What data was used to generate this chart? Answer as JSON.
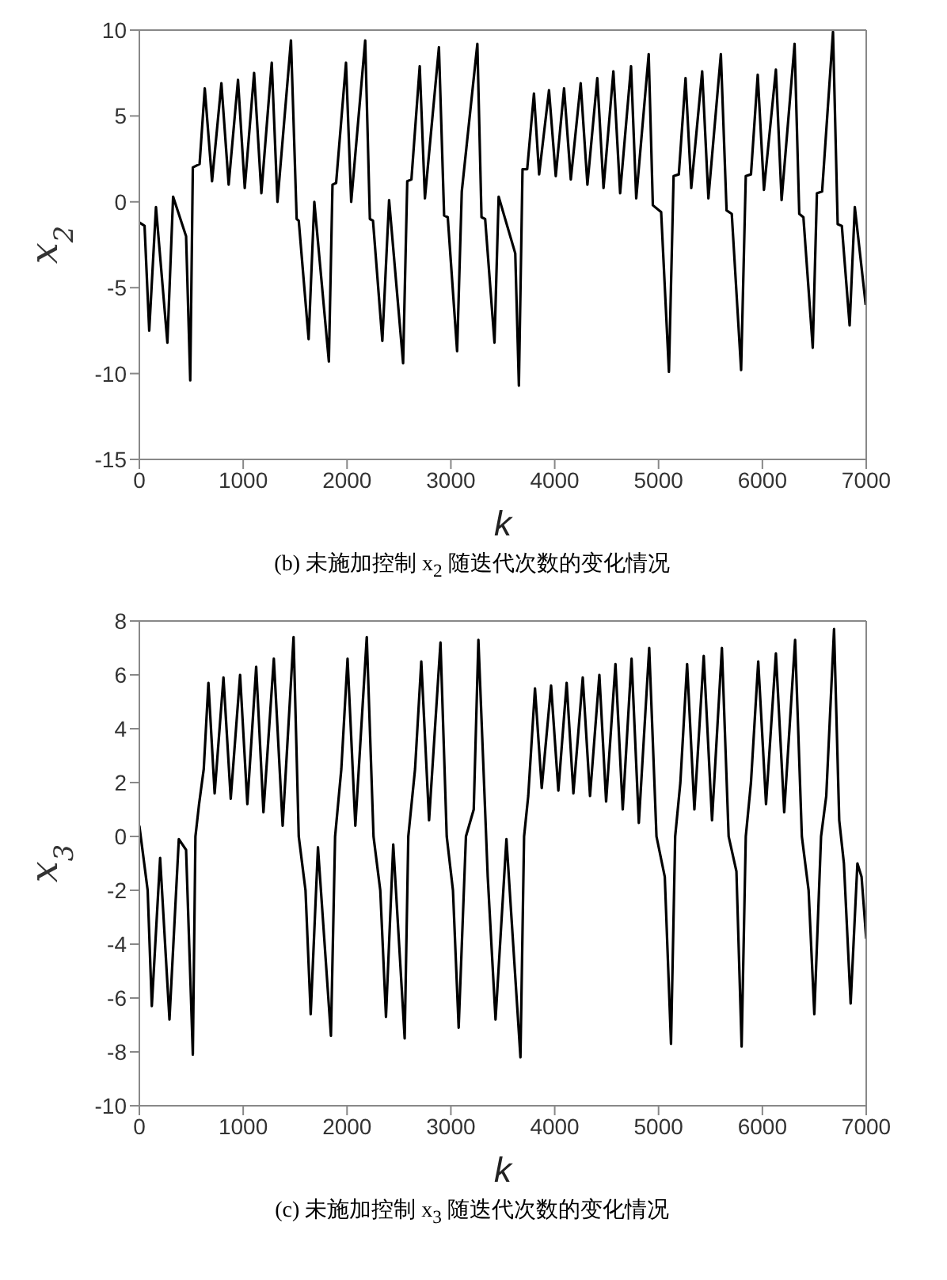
{
  "chart_data": [
    {
      "type": "line",
      "title": "(b)  未施加控制 x$_{2}$ 随迭代次数的变化情况",
      "xlabel": "k",
      "ylabel": "x$_{2}$",
      "xlim": [
        0,
        7000
      ],
      "xticks": [
        0,
        1000,
        2000,
        3000,
        4000,
        5000,
        6000,
        7000
      ],
      "ylim": [
        -15,
        10
      ],
      "yticks": [
        -15,
        -10,
        -5,
        0,
        5,
        10
      ],
      "marker": "none",
      "line_style": "solid",
      "series": [
        {
          "color": "#000000",
          "x": [
            0,
            50,
            95,
            160,
            270,
            325,
            450,
            490,
            515,
            580,
            630,
            700,
            790,
            860,
            950,
            1015,
            1105,
            1175,
            1275,
            1330,
            1460,
            1515,
            1535,
            1630,
            1685,
            1825,
            1860,
            1895,
            1990,
            2040,
            2175,
            2220,
            2250,
            2340,
            2405,
            2540,
            2580,
            2620,
            2700,
            2750,
            2885,
            2935,
            2970,
            3060,
            3105,
            3255,
            3295,
            3330,
            3420,
            3460,
            3620,
            3655,
            3690,
            3735,
            3800,
            3850,
            3945,
            4010,
            4090,
            4155,
            4250,
            4315,
            4410,
            4470,
            4565,
            4630,
            4735,
            4785,
            4905,
            4945,
            5025,
            5100,
            5145,
            5195,
            5260,
            5315,
            5420,
            5480,
            5600,
            5655,
            5705,
            5795,
            5840,
            5890,
            5955,
            6015,
            6130,
            6185,
            6310,
            6355,
            6395,
            6485,
            6525,
            6575,
            6680,
            6725,
            6765,
            6840,
            6890,
            6995
          ],
          "values": [
            -1.2,
            -1.4,
            -7.5,
            -0.3,
            -8.2,
            0.3,
            -2,
            -10.4,
            2,
            2.2,
            6.6,
            1.2,
            6.9,
            1,
            7.1,
            0.8,
            7.5,
            0.5,
            8.1,
            0,
            9.4,
            -1,
            -1.1,
            -8,
            0,
            -9.3,
            1,
            1.1,
            8.1,
            0,
            9.4,
            -1,
            -1.1,
            -8.1,
            0.1,
            -9.4,
            1.2,
            1.3,
            7.9,
            0.2,
            9,
            -0.8,
            -0.9,
            -8.7,
            0.6,
            9.2,
            -0.9,
            -1,
            -8.2,
            0.3,
            -3,
            -10.7,
            1.9,
            1.9,
            6.3,
            1.6,
            6.5,
            1.5,
            6.6,
            1.3,
            6.9,
            1,
            7.2,
            0.8,
            7.6,
            0.5,
            7.9,
            0.2,
            8.6,
            -0.2,
            -0.6,
            -9.9,
            1.5,
            1.6,
            7.2,
            0.8,
            7.6,
            0.2,
            8.6,
            -0.5,
            -0.7,
            -9.8,
            1.5,
            1.6,
            7.4,
            0.7,
            7.7,
            0.1,
            9.2,
            -0.7,
            -0.9,
            -8.5,
            0.5,
            0.6,
            9.9,
            -1.3,
            -1.4,
            -7.2,
            -0.3,
            -6
          ]
        }
      ]
    },
    {
      "type": "line",
      "title": "(c)  未施加控制 x$_{3}$ 随迭代次数的变化情况",
      "xlabel": "k",
      "ylabel": "x$_{3}$",
      "xlim": [
        0,
        7000
      ],
      "xticks": [
        0,
        1000,
        2000,
        3000,
        4000,
        5000,
        6000,
        7000
      ],
      "ylim": [
        -10,
        8
      ],
      "yticks": [
        -10,
        -8,
        -6,
        -4,
        -2,
        0,
        2,
        4,
        6,
        8
      ],
      "marker": "none",
      "line_style": "solid",
      "series": [
        {
          "color": "#000000",
          "x": [
            0,
            80,
            120,
            200,
            290,
            380,
            450,
            515,
            540,
            575,
            620,
            665,
            725,
            810,
            880,
            970,
            1040,
            1125,
            1195,
            1295,
            1380,
            1485,
            1535,
            1600,
            1650,
            1720,
            1845,
            1885,
            1945,
            2005,
            2080,
            2190,
            2255,
            2320,
            2375,
            2445,
            2555,
            2590,
            2655,
            2715,
            2790,
            2900,
            2960,
            3020,
            3075,
            3145,
            3220,
            3265,
            3355,
            3430,
            3535,
            3670,
            3705,
            3745,
            3810,
            3875,
            3965,
            4035,
            4115,
            4180,
            4270,
            4340,
            4430,
            4495,
            4585,
            4655,
            4740,
            4810,
            4910,
            4980,
            5060,
            5120,
            5160,
            5210,
            5275,
            5345,
            5435,
            5515,
            5610,
            5675,
            5750,
            5800,
            5840,
            5890,
            5960,
            6035,
            6130,
            6210,
            6315,
            6380,
            6445,
            6500,
            6565,
            6615,
            6690,
            6740,
            6785,
            6850,
            6915,
            6955,
            7000
          ],
          "values": [
            0.4,
            -2,
            -6.3,
            -0.8,
            -6.8,
            -0.1,
            -0.5,
            -8.1,
            0,
            1.2,
            2.5,
            5.7,
            1.6,
            5.9,
            1.4,
            6,
            1.2,
            6.3,
            0.9,
            6.6,
            0.4,
            7.4,
            0,
            -2,
            -6.6,
            -0.4,
            -7.4,
            0,
            2.5,
            6.6,
            0.4,
            7.4,
            0,
            -2,
            -6.7,
            -0.3,
            -7.5,
            0,
            2.5,
            6.5,
            0.6,
            7.2,
            0,
            -2,
            -7.1,
            0,
            1,
            7.3,
            -1.5,
            -6.8,
            -0.1,
            -8.2,
            0,
            1.5,
            5.5,
            1.8,
            5.6,
            1.7,
            5.7,
            1.6,
            5.9,
            1.5,
            6,
            1.3,
            6.4,
            1,
            6.6,
            0.5,
            7,
            0,
            -1.5,
            -7.7,
            0,
            2,
            6.4,
            1,
            6.7,
            0.6,
            7,
            0,
            -1.3,
            -7.8,
            0,
            2,
            6.5,
            1.2,
            6.8,
            0.9,
            7.3,
            0,
            -2,
            -6.6,
            0,
            1.5,
            7.7,
            0.6,
            -1,
            -6.2,
            -1,
            -1.5,
            -3.8
          ]
        }
      ]
    }
  ]
}
